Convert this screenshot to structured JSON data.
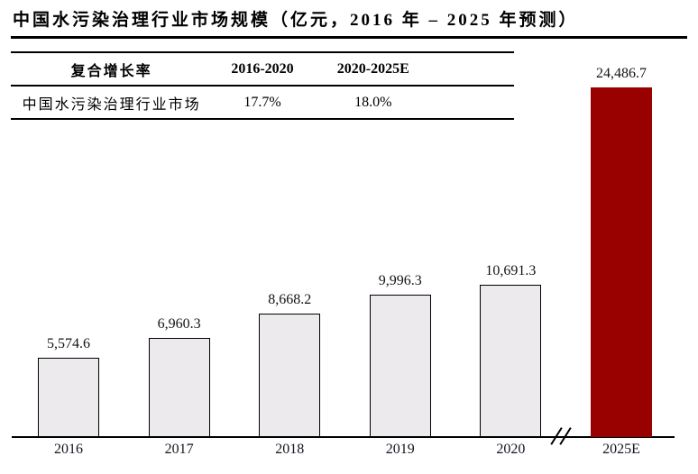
{
  "title": "中国水污染治理行业市场规模（亿元，2016 年 – 2025 年预测）",
  "growth_table": {
    "headers": [
      "复合增长率",
      "2016-2020",
      "2020-2025E"
    ],
    "rows": [
      {
        "label": "中国水污染治理行业市场",
        "values": [
          "17.7%",
          "18.0%"
        ]
      }
    ]
  },
  "chart_data": {
    "type": "bar",
    "title": "中国水污染治理行业市场规模（亿元，2016 年 – 2025 年预测）",
    "categories": [
      "2016",
      "2017",
      "2018",
      "2019",
      "2020",
      "2025E"
    ],
    "values": [
      5574.6,
      6960.3,
      8668.2,
      9996.3,
      10691.3,
      24486.7
    ],
    "value_labels": [
      "5,574.6",
      "6,960.3",
      "8,668.2",
      "9,996.3",
      "10,691.3",
      "24,486.7"
    ],
    "bar_colors": [
      "#eceaed",
      "#eceaed",
      "#eceaed",
      "#eceaed",
      "#eceaed",
      "#990100"
    ],
    "default_color": "#eceaed",
    "highlight_color": "#990100",
    "highlight_index": 5,
    "xlabel": "",
    "ylabel": "",
    "ylim": [
      0,
      24486.7
    ],
    "grid": false,
    "legend": false,
    "axis_break_between": [
      "2020",
      "2025E"
    ]
  }
}
